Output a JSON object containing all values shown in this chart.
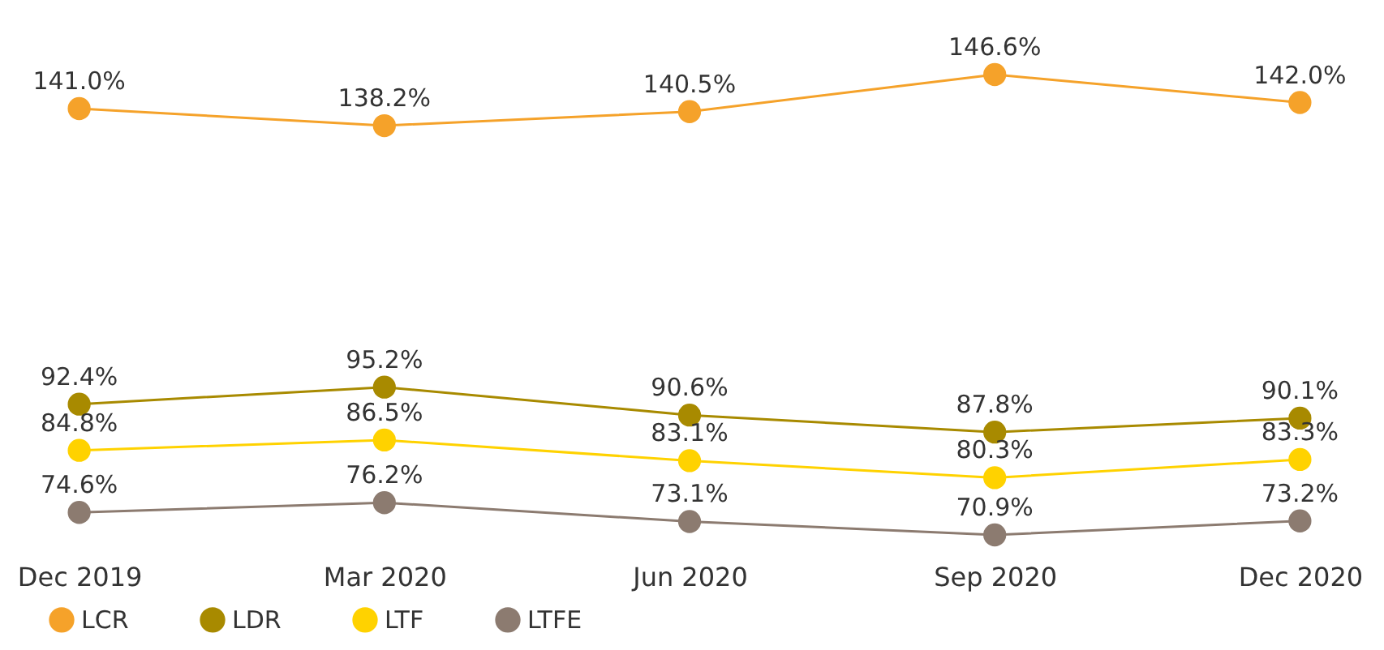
{
  "chart_data": {
    "type": "line",
    "categories": [
      "Dec 2019",
      "Mar 2020",
      "Jun 2020",
      "Sep 2020",
      "Dec 2020"
    ],
    "series": [
      {
        "name": "LCR",
        "color": "#f5a22a",
        "values": [
          141.0,
          138.2,
          140.5,
          146.6,
          142.0
        ],
        "value_labels": [
          "141.0%",
          "138.2%",
          "140.5%",
          "146.6%",
          "142.0%"
        ]
      },
      {
        "name": "LDR",
        "color": "#a88a00",
        "values": [
          92.4,
          95.2,
          90.6,
          87.8,
          90.1
        ],
        "value_labels": [
          "92.4%",
          "95.2%",
          "90.6%",
          "87.8%",
          "90.1%"
        ]
      },
      {
        "name": "LTF",
        "color": "#ffd200",
        "values": [
          84.8,
          86.5,
          83.1,
          80.3,
          83.3
        ],
        "value_labels": [
          "84.8%",
          "86.5%",
          "83.1%",
          "80.3%",
          "83.3%"
        ]
      },
      {
        "name": "LTFE",
        "color": "#8c7b70",
        "values": [
          74.6,
          76.2,
          73.1,
          70.9,
          73.2
        ],
        "value_labels": [
          "74.6%",
          "76.2%",
          "73.1%",
          "70.9%",
          "73.2%"
        ]
      }
    ],
    "marker": "circle",
    "legend": "bottom",
    "grid": false,
    "tick_labels": "x"
  }
}
